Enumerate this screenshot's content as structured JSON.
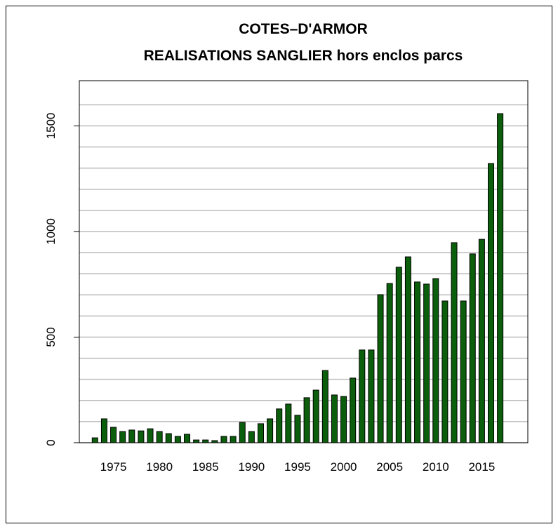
{
  "chart_data": {
    "type": "bar",
    "title": "COTES–D'ARMOR",
    "subtitle": "REALISATIONS SANGLIER hors enclos parcs",
    "x": [
      1973,
      1974,
      1975,
      1976,
      1977,
      1978,
      1979,
      1980,
      1981,
      1982,
      1983,
      1984,
      1985,
      1986,
      1987,
      1988,
      1989,
      1990,
      1991,
      1992,
      1993,
      1994,
      1995,
      1996,
      1997,
      1998,
      1999,
      2000,
      2001,
      2002,
      2003,
      2004,
      2005,
      2006,
      2007,
      2008,
      2009,
      2010,
      2011,
      2012,
      2013,
      2014,
      2015,
      2016,
      2017
    ],
    "values": [
      23,
      113,
      73,
      53,
      60,
      56,
      66,
      53,
      43,
      30,
      40,
      13,
      13,
      10,
      30,
      30,
      96,
      53,
      90,
      113,
      160,
      183,
      130,
      213,
      249,
      342,
      226,
      219,
      306,
      439,
      439,
      701,
      754,
      831,
      880,
      761,
      751,
      777,
      671,
      947,
      671,
      894,
      963,
      1322,
      1558
    ],
    "color": "#0b5e0b",
    "xlim": [
      1971.3,
      2020
    ],
    "xticks": [
      1975,
      1980,
      1985,
      1990,
      1995,
      2000,
      2005,
      2010,
      2015
    ],
    "ylim": [
      0,
      1714
    ],
    "yticks": [
      0,
      500,
      1000,
      1500
    ],
    "ygrid": [
      0,
      100,
      200,
      300,
      400,
      500,
      600,
      700,
      800,
      900,
      1000,
      1100,
      1200,
      1300,
      1400,
      1500,
      1600
    ],
    "grid": true
  }
}
